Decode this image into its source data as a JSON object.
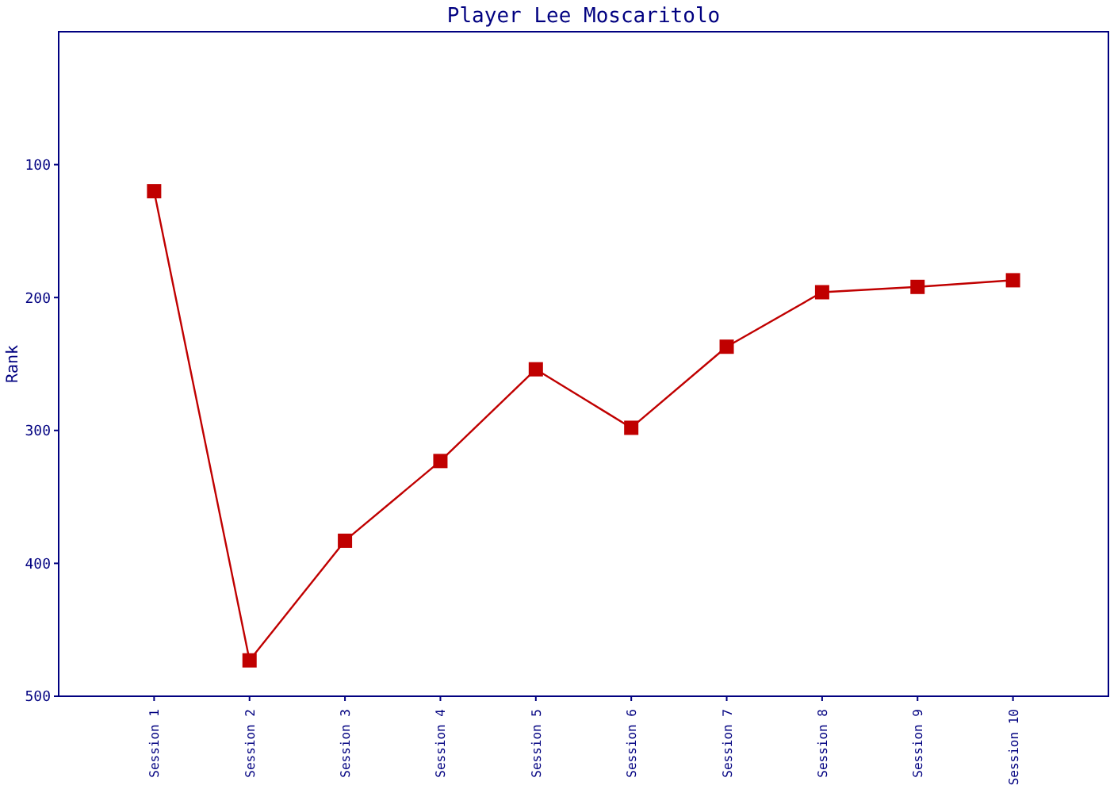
{
  "chart_data": {
    "type": "line",
    "title": "Player Lee Moscaritolo",
    "ylabel": "Rank",
    "categories": [
      "Session 1",
      "Session 2",
      "Session 3",
      "Session 4",
      "Session 5",
      "Session 6",
      "Session 7",
      "Session 8",
      "Session 9",
      "Session 10"
    ],
    "series": [
      {
        "color": "#c00000",
        "values": [
          120,
          473,
          383,
          323,
          254,
          298,
          237,
          196,
          192,
          187
        ]
      }
    ],
    "ylim": [
      500,
      0
    ],
    "yticks": [
      100,
      200,
      300,
      400,
      500
    ],
    "marker": "square",
    "line_style": "solid"
  }
}
